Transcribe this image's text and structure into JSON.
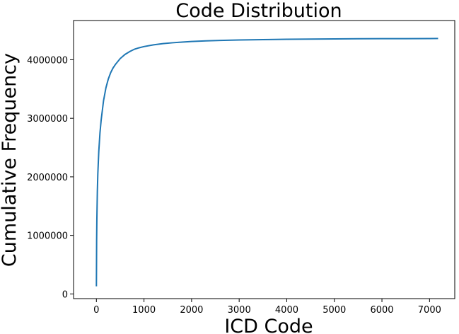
{
  "chart_data": {
    "type": "line",
    "title": "Code Distribution",
    "xlabel": "ICD Code",
    "ylabel": "Cumulative Frequency",
    "xlim": [
      -480,
      7530
    ],
    "ylim": [
      -80000,
      4670000
    ],
    "xticks": [
      0,
      1000,
      2000,
      3000,
      4000,
      5000,
      6000,
      7000
    ],
    "yticks": [
      0,
      1000000,
      2000000,
      3000000,
      4000000
    ],
    "grid": false,
    "legend": "none",
    "colors": {
      "line": "#1f77b4",
      "axes": "#000000"
    },
    "series": [
      {
        "x": [
          0,
          5,
          10,
          20,
          30,
          50,
          75,
          100,
          150,
          200,
          250,
          300,
          350,
          400,
          500,
          600,
          700,
          800,
          900,
          1000,
          1200,
          1400,
          1600,
          1800,
          2000,
          2300,
          2600,
          3000,
          3500,
          4000,
          4500,
          5000,
          5500,
          6000,
          6500,
          7000,
          7180
        ],
        "y": [
          130000,
          900000,
          1280000,
          1750000,
          2050000,
          2430000,
          2750000,
          2970000,
          3300000,
          3520000,
          3670000,
          3780000,
          3860000,
          3920000,
          4020000,
          4090000,
          4140000,
          4180000,
          4205000,
          4225000,
          4255000,
          4275000,
          4290000,
          4302000,
          4312000,
          4322000,
          4330000,
          4338000,
          4344000,
          4349000,
          4353000,
          4356000,
          4358000,
          4360000,
          4361000,
          4362000,
          4363000
        ]
      }
    ]
  }
}
